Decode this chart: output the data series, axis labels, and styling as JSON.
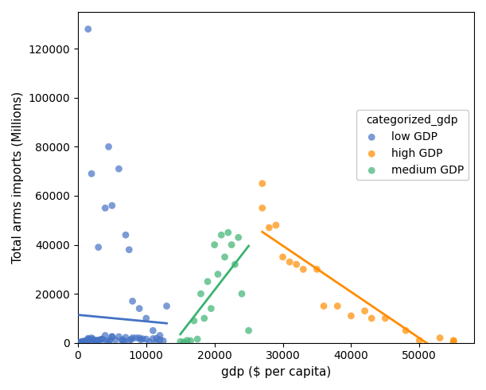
{
  "title": "",
  "xlabel": "gdp ($ per capita)",
  "ylabel": "Total arms imports (Millions)",
  "legend_title": "categorized_gdp",
  "categories": [
    "low GDP",
    "high GDP",
    "medium GDP"
  ],
  "colors": {
    "low GDP": "#4472C4",
    "high GDP": "#FF8C00",
    "medium GDP": "#3CB371"
  },
  "scatter_data": {
    "low GDP": {
      "x": [
        1500,
        2000,
        3000,
        4000,
        4500,
        5000,
        6000,
        7000,
        7500,
        8000,
        9000,
        10000,
        11000,
        12000,
        13000,
        200,
        300,
        400,
        500,
        600,
        700,
        800,
        900,
        1000,
        1100,
        1200,
        1400,
        1600,
        1800,
        2200,
        2500,
        2800,
        3200,
        3600,
        4200,
        5500,
        6500,
        7800,
        9500,
        11500,
        2000,
        3500,
        5000,
        7000,
        9000,
        11000,
        1500,
        4000,
        6000,
        8000,
        10000,
        12000,
        500,
        1500,
        3000,
        5000,
        7500,
        10500,
        800,
        2500,
        4500,
        6500,
        8500,
        11500,
        1300,
        2700,
        4700,
        6800,
        9200,
        12500
      ],
      "y": [
        128000,
        69000,
        39000,
        55000,
        80000,
        56000,
        71000,
        44000,
        38000,
        17000,
        14000,
        10000,
        5000,
        3000,
        15000,
        100,
        200,
        300,
        200,
        400,
        300,
        400,
        500,
        700,
        500,
        600,
        800,
        1000,
        1200,
        1500,
        800,
        1000,
        1200,
        1500,
        700,
        1100,
        1300,
        1400,
        1600,
        1800,
        2000,
        1500,
        2500,
        2200,
        2000,
        1700,
        1800,
        3000,
        2500,
        2000,
        1500,
        1200,
        300,
        1500,
        1000,
        2500,
        800,
        300,
        600,
        500,
        400,
        700,
        2000,
        200,
        400,
        900,
        1100,
        600,
        1300,
        800
      ]
    },
    "medium GDP": {
      "x": [
        15000,
        15500,
        16000,
        17000,
        17500,
        18000,
        19000,
        20000,
        21000,
        22000,
        23000,
        24000,
        25000,
        16500,
        18500,
        20500,
        22500,
        19500,
        21500,
        23500
      ],
      "y": [
        500,
        300,
        1000,
        9000,
        1500,
        20000,
        25000,
        40000,
        44000,
        45000,
        32000,
        20000,
        5000,
        800,
        10000,
        28000,
        40000,
        14000,
        35000,
        43000
      ]
    },
    "high GDP": {
      "x": [
        27000,
        27000,
        28000,
        29000,
        30000,
        31000,
        32000,
        33000,
        35000,
        36000,
        38000,
        40000,
        42000,
        43000,
        45000,
        48000,
        50000,
        53000,
        55000,
        55000
      ],
      "y": [
        65000,
        55000,
        47000,
        48000,
        35000,
        33000,
        32000,
        30000,
        30000,
        15000,
        15000,
        11000,
        13000,
        10000,
        10000,
        5000,
        1000,
        2000,
        500,
        1000
      ]
    }
  },
  "marker_size": 40,
  "marker_alpha": 0.7,
  "figsize": [
    6.11,
    4.9
  ],
  "dpi": 100,
  "xlim": [
    0,
    58000
  ],
  "ylim": [
    0,
    135000
  ]
}
